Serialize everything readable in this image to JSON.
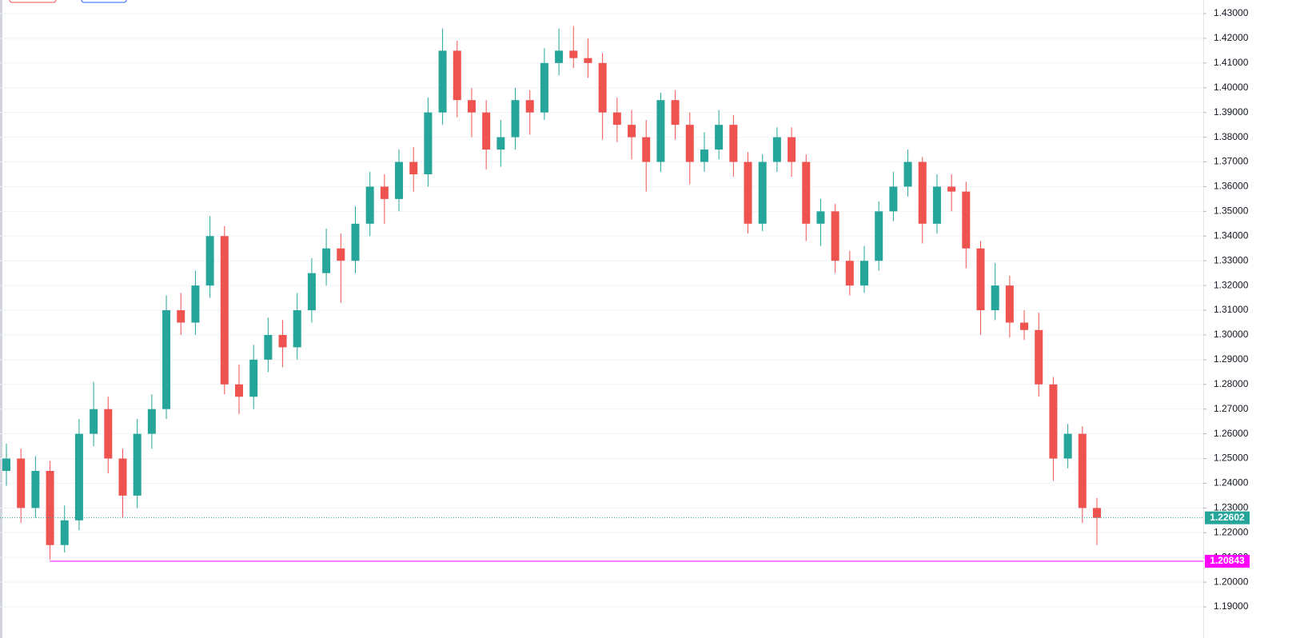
{
  "chart_data": {
    "type": "candlestick",
    "up_color": "#26a69a",
    "down_color": "#ef5350",
    "open": [
      1.245,
      1.25,
      1.23,
      1.245,
      1.215,
      1.225,
      1.26,
      1.27,
      1.25,
      1.235,
      1.26,
      1.27,
      1.31,
      1.305,
      1.32,
      1.34,
      1.28,
      1.275,
      1.29,
      1.3,
      1.295,
      1.31,
      1.325,
      1.335,
      1.33,
      1.345,
      1.36,
      1.355,
      1.37,
      1.365,
      1.39,
      1.415,
      1.395,
      1.39,
      1.375,
      1.38,
      1.395,
      1.39,
      1.41,
      1.415,
      1.412,
      1.41,
      1.39,
      1.385,
      1.38,
      1.37,
      1.395,
      1.385,
      1.37,
      1.375,
      1.385,
      1.37,
      1.345,
      1.37,
      1.38,
      1.37,
      1.345,
      1.35,
      1.33,
      1.32,
      1.33,
      1.35,
      1.36,
      1.37,
      1.345,
      1.36,
      1.358,
      1.335,
      1.31,
      1.32,
      1.305,
      1.302,
      1.28,
      1.25,
      1.26,
      1.23
    ],
    "high": [
      1.256,
      1.254,
      1.251,
      1.249,
      1.231,
      1.266,
      1.281,
      1.275,
      1.254,
      1.266,
      1.276,
      1.316,
      1.317,
      1.326,
      1.348,
      1.344,
      1.288,
      1.296,
      1.307,
      1.306,
      1.317,
      1.331,
      1.343,
      1.341,
      1.352,
      1.366,
      1.365,
      1.375,
      1.376,
      1.396,
      1.424,
      1.419,
      1.4,
      1.395,
      1.387,
      1.4,
      1.399,
      1.416,
      1.424,
      1.425,
      1.42,
      1.414,
      1.396,
      1.391,
      1.387,
      1.398,
      1.399,
      1.39,
      1.382,
      1.391,
      1.389,
      1.374,
      1.373,
      1.384,
      1.384,
      1.373,
      1.355,
      1.353,
      1.334,
      1.336,
      1.354,
      1.366,
      1.375,
      1.372,
      1.365,
      1.365,
      1.362,
      1.338,
      1.329,
      1.324,
      1.31,
      1.309,
      1.283,
      1.264,
      1.263,
      1.234
    ],
    "low": [
      1.239,
      1.224,
      1.226,
      1.209,
      1.212,
      1.221,
      1.255,
      1.244,
      1.226,
      1.23,
      1.254,
      1.266,
      1.3,
      1.3,
      1.315,
      1.276,
      1.268,
      1.27,
      1.285,
      1.287,
      1.29,
      1.305,
      1.32,
      1.313,
      1.325,
      1.34,
      1.345,
      1.35,
      1.358,
      1.36,
      1.385,
      1.388,
      1.38,
      1.367,
      1.368,
      1.375,
      1.381,
      1.387,
      1.405,
      1.408,
      1.404,
      1.379,
      1.378,
      1.371,
      1.358,
      1.366,
      1.379,
      1.361,
      1.366,
      1.371,
      1.364,
      1.341,
      1.342,
      1.366,
      1.364,
      1.338,
      1.336,
      1.325,
      1.316,
      1.317,
      1.326,
      1.346,
      1.356,
      1.337,
      1.341,
      1.35,
      1.327,
      1.3,
      1.306,
      1.299,
      1.298,
      1.275,
      1.241,
      1.246,
      1.224,
      1.215
    ],
    "close": [
      1.25,
      1.23,
      1.245,
      1.215,
      1.225,
      1.26,
      1.27,
      1.25,
      1.235,
      1.26,
      1.27,
      1.31,
      1.305,
      1.32,
      1.34,
      1.28,
      1.275,
      1.29,
      1.3,
      1.295,
      1.31,
      1.325,
      1.335,
      1.33,
      1.345,
      1.36,
      1.355,
      1.37,
      1.365,
      1.39,
      1.415,
      1.395,
      1.39,
      1.375,
      1.38,
      1.395,
      1.39,
      1.41,
      1.415,
      1.412,
      1.41,
      1.39,
      1.385,
      1.38,
      1.37,
      1.395,
      1.385,
      1.37,
      1.375,
      1.385,
      1.37,
      1.345,
      1.37,
      1.38,
      1.37,
      1.345,
      1.35,
      1.33,
      1.32,
      1.33,
      1.35,
      1.36,
      1.37,
      1.345,
      1.36,
      1.358,
      1.335,
      1.31,
      1.32,
      1.305,
      1.302,
      1.28,
      1.25,
      1.26,
      1.23,
      1.22602
    ],
    "ylim": [
      1.1774,
      1.4355
    ],
    "yticks": [
      {
        "value": 1.19,
        "label": "1.19000"
      },
      {
        "value": 1.2,
        "label": "1.20000"
      },
      {
        "value": 1.21,
        "label": "1.21000"
      },
      {
        "value": 1.22,
        "label": "1.22000"
      },
      {
        "value": 1.23,
        "label": "1.23000"
      },
      {
        "value": 1.24,
        "label": "1.24000"
      },
      {
        "value": 1.25,
        "label": "1.25000"
      },
      {
        "value": 1.26,
        "label": "1.26000"
      },
      {
        "value": 1.27,
        "label": "1.27000"
      },
      {
        "value": 1.28,
        "label": "1.28000"
      },
      {
        "value": 1.29,
        "label": "1.29000"
      },
      {
        "value": 1.3,
        "label": "1.30000"
      },
      {
        "value": 1.31,
        "label": "1.31000"
      },
      {
        "value": 1.32,
        "label": "1.32000"
      },
      {
        "value": 1.33,
        "label": "1.33000"
      },
      {
        "value": 1.34,
        "label": "1.34000"
      },
      {
        "value": 1.35,
        "label": "1.35000"
      },
      {
        "value": 1.36,
        "label": "1.36000"
      },
      {
        "value": 1.37,
        "label": "1.37000"
      },
      {
        "value": 1.38,
        "label": "1.38000"
      },
      {
        "value": 1.39,
        "label": "1.39000"
      },
      {
        "value": 1.4,
        "label": "1.40000"
      },
      {
        "value": 1.41,
        "label": "1.41000"
      },
      {
        "value": 1.42,
        "label": "1.42000"
      },
      {
        "value": 1.43,
        "label": "1.43000"
      }
    ],
    "grid": true,
    "horizontal_line": {
      "value": 1.20843,
      "color": "#ff00ff"
    }
  }
}
